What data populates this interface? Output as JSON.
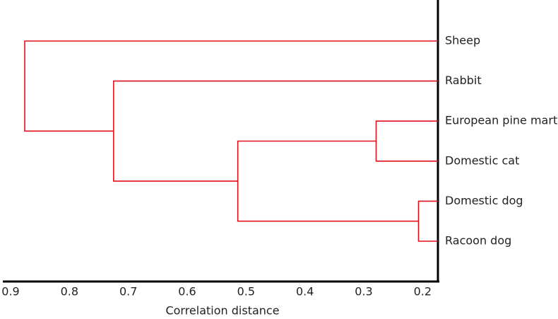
{
  "chart_data": {
    "type": "dendrogram",
    "xlabel": "Correlation distance",
    "leaves": [
      "Sheep",
      "Rabbit",
      "European pine martin",
      "Domestic cat",
      "Domestic dog",
      "Racoon dog"
    ],
    "merges": [
      {
        "left": 4,
        "right": 5,
        "height": 0.207
      },
      {
        "left": 2,
        "right": 3,
        "height": 0.279
      },
      {
        "left": 7,
        "right": 6,
        "height": 0.514
      },
      {
        "left": 1,
        "right": 8,
        "height": 0.725
      },
      {
        "left": 0,
        "right": 9,
        "height": 0.876
      }
    ],
    "color": "#e3101c",
    "xlim": [
      0.912,
      0.174
    ],
    "xticks": [
      0.9,
      0.8,
      0.7,
      0.6,
      0.5,
      0.4,
      0.3,
      0.2
    ]
  }
}
